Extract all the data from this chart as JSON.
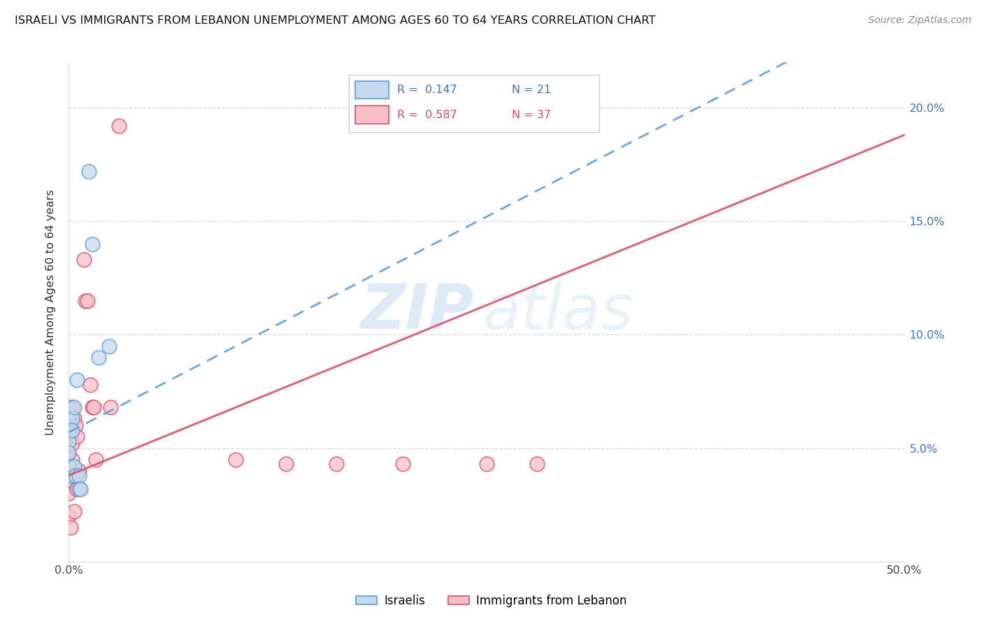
{
  "title": "ISRAELI VS IMMIGRANTS FROM LEBANON UNEMPLOYMENT AMONG AGES 60 TO 64 YEARS CORRELATION CHART",
  "source": "Source: ZipAtlas.com",
  "ylabel": "Unemployment Among Ages 60 to 64 years",
  "xlim": [
    0.0,
    0.5
  ],
  "ylim": [
    0.0,
    0.22
  ],
  "israeli_R": "0.147",
  "israeli_N": "21",
  "lebanon_R": "0.587",
  "lebanon_N": "37",
  "israeli_fill": "#c5daee",
  "israeli_edge": "#5b9bd5",
  "lebanon_fill": "#f9bfc9",
  "lebanon_edge": "#d9506a",
  "israeli_line_color": "#5b9bd5",
  "lebanon_line_color": "#d9506a",
  "grid_color": "#d8d8d8",
  "watermark_zip_color": "#cde4f3",
  "watermark_atlas_color": "#cde4f3",
  "isr_line_slope": 0.36,
  "isr_line_intercept": 0.054,
  "leb_line_slope": 0.3,
  "leb_line_intercept": 0.038,
  "israeli_pts": [
    [
      0.0,
      0.063
    ],
    [
      0.0,
      0.068
    ],
    [
      0.0,
      0.065
    ],
    [
      0.0,
      0.057
    ],
    [
      0.0,
      0.053
    ],
    [
      0.0,
      0.048
    ],
    [
      0.0,
      0.042
    ],
    [
      0.001,
      0.038
    ],
    [
      0.002,
      0.063
    ],
    [
      0.002,
      0.058
    ],
    [
      0.003,
      0.068
    ],
    [
      0.003,
      0.042
    ],
    [
      0.004,
      0.038
    ],
    [
      0.005,
      0.08
    ],
    [
      0.006,
      0.038
    ],
    [
      0.006,
      0.032
    ],
    [
      0.007,
      0.032
    ],
    [
      0.012,
      0.172
    ],
    [
      0.014,
      0.14
    ],
    [
      0.018,
      0.09
    ],
    [
      0.024,
      0.095
    ]
  ],
  "lebanon_pts": [
    [
      0.0,
      0.065
    ],
    [
      0.0,
      0.06
    ],
    [
      0.0,
      0.055
    ],
    [
      0.0,
      0.048
    ],
    [
      0.0,
      0.043
    ],
    [
      0.0,
      0.04
    ],
    [
      0.0,
      0.035
    ],
    [
      0.0,
      0.03
    ],
    [
      0.0,
      0.02
    ],
    [
      0.001,
      0.015
    ],
    [
      0.002,
      0.068
    ],
    [
      0.002,
      0.057
    ],
    [
      0.002,
      0.052
    ],
    [
      0.002,
      0.045
    ],
    [
      0.003,
      0.035
    ],
    [
      0.003,
      0.022
    ],
    [
      0.003,
      0.063
    ],
    [
      0.004,
      0.06
    ],
    [
      0.004,
      0.038
    ],
    [
      0.005,
      0.032
    ],
    [
      0.005,
      0.055
    ],
    [
      0.006,
      0.04
    ],
    [
      0.009,
      0.133
    ],
    [
      0.01,
      0.115
    ],
    [
      0.011,
      0.115
    ],
    [
      0.013,
      0.078
    ],
    [
      0.014,
      0.068
    ],
    [
      0.015,
      0.068
    ],
    [
      0.016,
      0.045
    ],
    [
      0.025,
      0.068
    ],
    [
      0.03,
      0.192
    ],
    [
      0.1,
      0.045
    ],
    [
      0.13,
      0.043
    ],
    [
      0.16,
      0.043
    ],
    [
      0.2,
      0.043
    ],
    [
      0.25,
      0.043
    ],
    [
      0.28,
      0.043
    ]
  ]
}
